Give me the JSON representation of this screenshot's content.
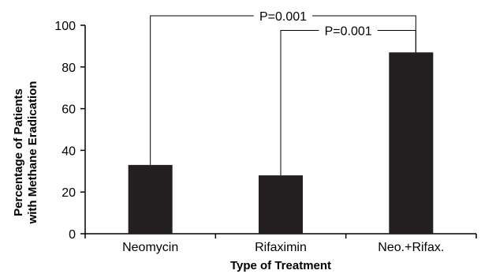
{
  "chart_data": {
    "type": "bar",
    "categories": [
      "Neomycin",
      "Rifaximin",
      "Neo.+Rifax."
    ],
    "values": [
      33,
      28,
      87
    ],
    "xlabel": "Type of Treatment",
    "ylabel": [
      "Percentage of Patients",
      "with Methane Eradication"
    ],
    "ylim": [
      0,
      100
    ],
    "yticks": [
      0,
      20,
      40,
      60,
      80,
      100
    ],
    "grid": false,
    "bar_color": "#231f20",
    "annotations": [
      {
        "text": "P=0.001",
        "from": "Neomycin",
        "to": "Neo.+Rifax.",
        "level": 100
      },
      {
        "text": "P=0.001",
        "from": "Rifaximin",
        "to": "Neo.+Rifax.",
        "level": 93
      }
    ]
  }
}
